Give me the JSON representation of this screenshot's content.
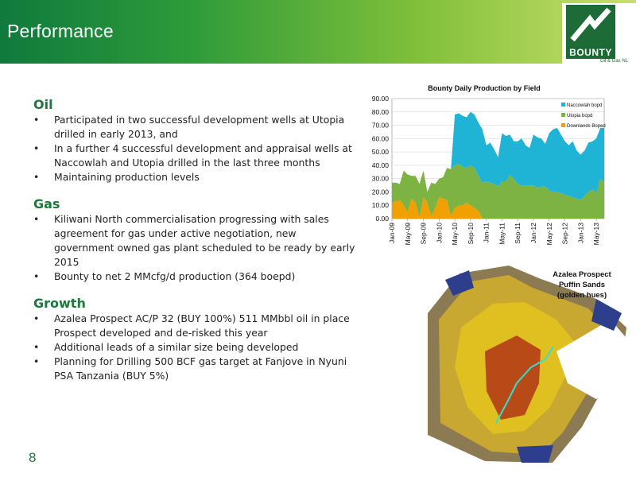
{
  "header": {
    "title": "Performance",
    "logo": {
      "name": "BOUNTY",
      "sub": "Oil & Gas NL"
    }
  },
  "sections": [
    {
      "heading": "Oil",
      "bullets": [
        "Participated in two successful development wells at Utopia drilled in early 2013, and",
        "In a further 4 successful development and appraisal wells at Naccowlah and Utopia drilled in the last three months",
        "Maintaining production levels"
      ]
    },
    {
      "heading": "Gas",
      "bullets": [
        "Kiliwani North commercialisation progressing with sales agreement for gas under active negotiation, new government owned gas plant scheduled to be ready by early 2015",
        "Bounty to net 2 MMcfg/d production (364 boepd)"
      ]
    },
    {
      "heading": "Growth",
      "bullets": [
        "Azalea Prospect AC/P 32 (BUY 100%) 511 MMbbl oil in place Prospect  developed and de-risked this year",
        "Additional leads of a similar size being developed",
        "Planning for Drilling 500 BCF gas target at Fanjove in Nyuni PSA Tanzania (BUY 5%)"
      ]
    }
  ],
  "bullet_char": "•",
  "page_number": "8",
  "map": {
    "caption_lines": [
      "Azalea Prospect",
      "Puffin Sands",
      "(golden hues)"
    ]
  },
  "chart_data": {
    "type": "area",
    "title": "Bounty Daily Production by Field",
    "xlabel": "",
    "ylabel": "",
    "ylim": [
      0,
      90
    ],
    "yticks": [
      "0.00",
      "10.00",
      "20.00",
      "30.00",
      "40.00",
      "50.00",
      "60.00",
      "70.00",
      "80.00",
      "90.00"
    ],
    "xticks": [
      "Jan-09",
      "May-09",
      "Sep-09",
      "Jan-10",
      "May-10",
      "Sep-10",
      "Jan-11",
      "May-11",
      "Sep-11",
      "Jan-12",
      "May-12",
      "Sep-12",
      "Jan-13",
      "May-13"
    ],
    "x": [
      "Jan-09",
      "Feb-09",
      "Mar-09",
      "Apr-09",
      "May-09",
      "Jun-09",
      "Jul-09",
      "Aug-09",
      "Sep-09",
      "Oct-09",
      "Nov-09",
      "Dec-09",
      "Jan-10",
      "Feb-10",
      "Mar-10",
      "Apr-10",
      "May-10",
      "Jun-10",
      "Jul-10",
      "Aug-10",
      "Sep-10",
      "Oct-10",
      "Nov-10",
      "Dec-10",
      "Jan-11",
      "Feb-11",
      "Mar-11",
      "Apr-11",
      "May-11",
      "Jun-11",
      "Jul-11",
      "Aug-11",
      "Sep-11",
      "Oct-11",
      "Nov-11",
      "Dec-11",
      "Jan-12",
      "Feb-12",
      "Mar-12",
      "Apr-12",
      "May-12",
      "Jun-12",
      "Jul-12",
      "Aug-12",
      "Sep-12",
      "Oct-12",
      "Nov-12",
      "Dec-12",
      "Jan-13",
      "Feb-13",
      "Mar-13",
      "Apr-13",
      "May-13",
      "Jun-13",
      "Jul-13"
    ],
    "stacked": true,
    "legend": "right",
    "series": [
      {
        "name": "Downlands Boped",
        "color": "#f0a000",
        "values": [
          12,
          13,
          14,
          10,
          5,
          15,
          12,
          1,
          16,
          12,
          2,
          8,
          16,
          15,
          14,
          2,
          8,
          10,
          10,
          12,
          10,
          8,
          6,
          0,
          0,
          0,
          0,
          0,
          0,
          0,
          0,
          0,
          0,
          0,
          0,
          0,
          0,
          0,
          0,
          0,
          0,
          0,
          0,
          0,
          0,
          0,
          0,
          0,
          0,
          0,
          0,
          0,
          0,
          0,
          0
        ]
      },
      {
        "name": "Utopia bopd",
        "color": "#7cb342",
        "values": [
          15,
          14,
          12,
          26,
          28,
          17,
          20,
          25,
          20,
          8,
          25,
          18,
          14,
          16,
          24,
          35,
          32,
          31,
          29,
          26,
          30,
          30,
          26,
          27,
          28,
          27,
          26,
          24,
          28,
          28,
          33,
          30,
          26,
          25,
          25,
          25,
          25,
          23,
          24,
          24,
          21,
          20,
          20,
          19,
          18,
          17,
          16,
          15,
          14,
          17,
          20,
          22,
          19,
          30,
          28
        ]
      },
      {
        "name": "Naccowlah bopd",
        "color": "#1fb3d6",
        "values": [
          0,
          0,
          0,
          0,
          0,
          0,
          0,
          0,
          0,
          0,
          0,
          0,
          0,
          0,
          0,
          0,
          38,
          38,
          38,
          38,
          40,
          40,
          40,
          40,
          27,
          30,
          26,
          22,
          36,
          34,
          30,
          28,
          32,
          35,
          30,
          28,
          38,
          38,
          36,
          32,
          43,
          47,
          48,
          44,
          40,
          38,
          42,
          36,
          34,
          34,
          37,
          36,
          41,
          38,
          40
        ]
      }
    ]
  }
}
